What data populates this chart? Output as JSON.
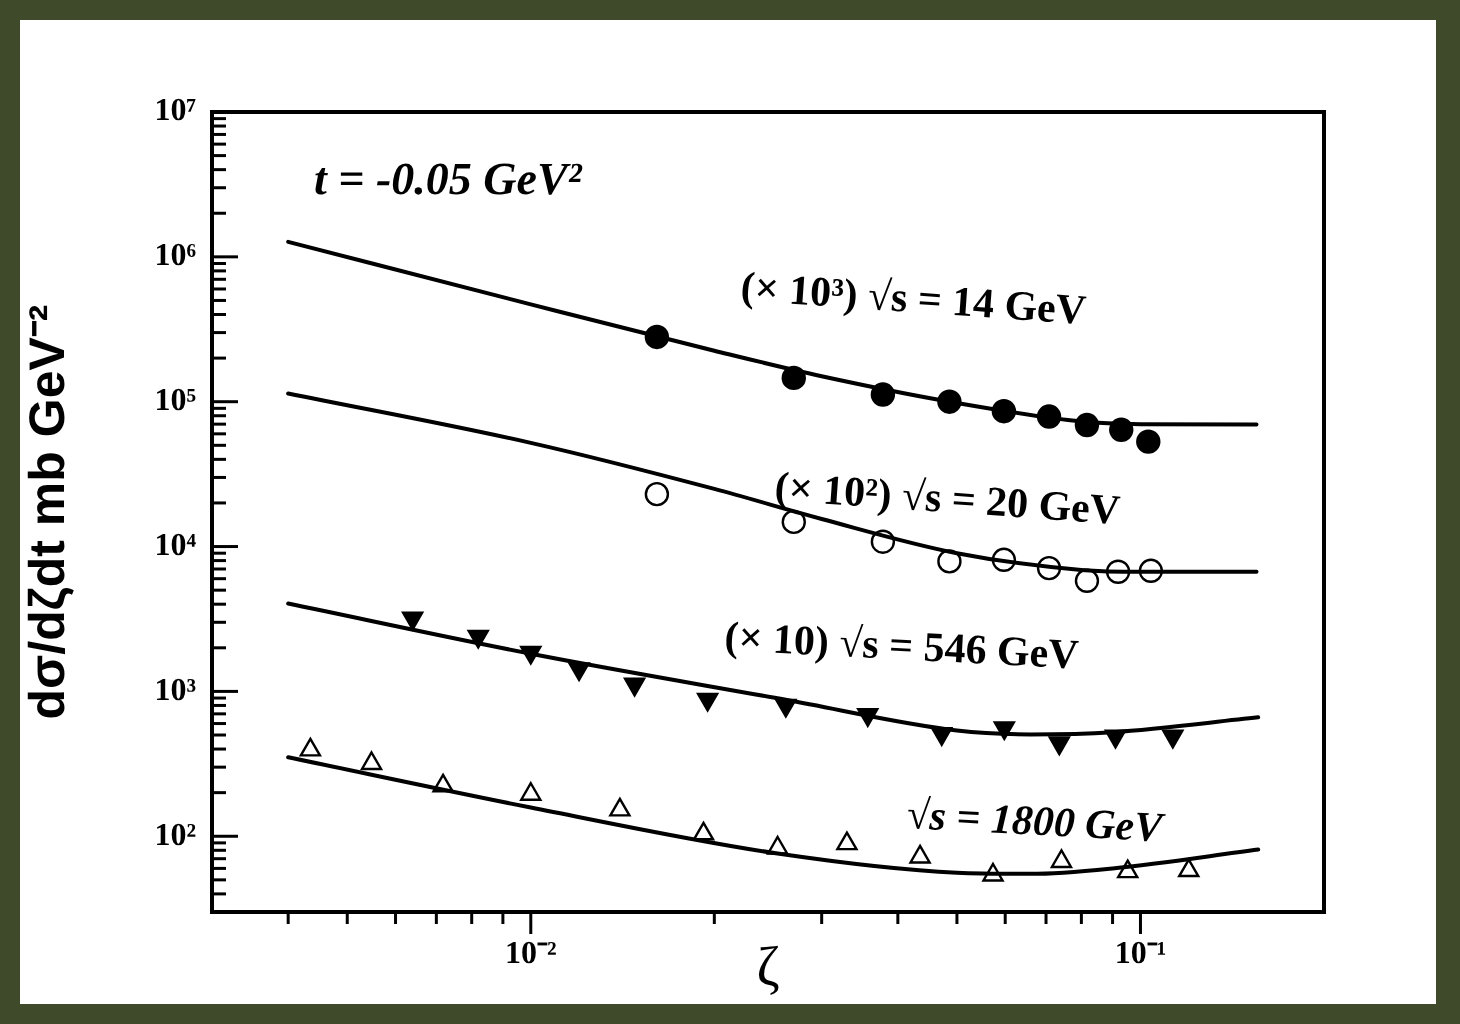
{
  "chart_data": {
    "type": "scatter",
    "xlabel": "ζ",
    "ylabel": "dσ/dζdt mb GeV⁻²",
    "log": "xy",
    "legend": false,
    "xlim": [
      0.003,
      0.2
    ],
    "ylim": [
      30,
      10000000
    ],
    "xticks": [
      {
        "value": 0.004,
        "label": null
      },
      {
        "value": 0.005,
        "label": null
      },
      {
        "value": 0.006,
        "label": null
      },
      {
        "value": 0.007,
        "label": null
      },
      {
        "value": 0.008,
        "label": null
      },
      {
        "value": 0.009,
        "label": null
      },
      {
        "value": 0.01,
        "label": "10⁻²"
      },
      {
        "value": 0.02,
        "label": null
      },
      {
        "value": 0.03,
        "label": null
      },
      {
        "value": 0.04,
        "label": null
      },
      {
        "value": 0.05,
        "label": null
      },
      {
        "value": 0.06,
        "label": null
      },
      {
        "value": 0.07,
        "label": null
      },
      {
        "value": 0.08,
        "label": null
      },
      {
        "value": 0.09,
        "label": null
      },
      {
        "value": 0.1,
        "label": "10⁻¹"
      }
    ],
    "yticks": [
      {
        "value": 30,
        "label": null
      },
      {
        "value": 40,
        "label": null
      },
      {
        "value": 50,
        "label": null
      },
      {
        "value": 60,
        "label": null
      },
      {
        "value": 70,
        "label": null
      },
      {
        "value": 80,
        "label": null
      },
      {
        "value": 90,
        "label": null
      },
      {
        "value": 100,
        "label": "10²"
      },
      {
        "value": 200,
        "label": null
      },
      {
        "value": 300,
        "label": null
      },
      {
        "value": 400,
        "label": null
      },
      {
        "value": 500,
        "label": null
      },
      {
        "value": 600,
        "label": null
      },
      {
        "value": 700,
        "label": null
      },
      {
        "value": 800,
        "label": null
      },
      {
        "value": 900,
        "label": null
      },
      {
        "value": 1000,
        "label": "10³"
      },
      {
        "value": 2000,
        "label": null
      },
      {
        "value": 3000,
        "label": null
      },
      {
        "value": 4000,
        "label": null
      },
      {
        "value": 5000,
        "label": null
      },
      {
        "value": 6000,
        "label": null
      },
      {
        "value": 7000,
        "label": null
      },
      {
        "value": 8000,
        "label": null
      },
      {
        "value": 9000,
        "label": null
      },
      {
        "value": 10000,
        "label": "10⁴"
      },
      {
        "value": 20000,
        "label": null
      },
      {
        "value": 30000,
        "label": null
      },
      {
        "value": 40000,
        "label": null
      },
      {
        "value": 50000,
        "label": null
      },
      {
        "value": 60000,
        "label": null
      },
      {
        "value": 70000,
        "label": null
      },
      {
        "value": 80000,
        "label": null
      },
      {
        "value": 90000,
        "label": null
      },
      {
        "value": 100000,
        "label": "10⁵"
      },
      {
        "value": 200000,
        "label": null
      },
      {
        "value": 300000,
        "label": null
      },
      {
        "value": 400000,
        "label": null
      },
      {
        "value": 500000,
        "label": null
      },
      {
        "value": 600000,
        "label": null
      },
      {
        "value": 700000,
        "label": null
      },
      {
        "value": 800000,
        "label": null
      },
      {
        "value": 900000,
        "label": null
      },
      {
        "value": 1000000,
        "label": "10⁶"
      },
      {
        "value": 2000000,
        "label": null
      },
      {
        "value": 3000000,
        "label": null
      },
      {
        "value": 4000000,
        "label": null
      },
      {
        "value": 5000000,
        "label": null
      },
      {
        "value": 6000000,
        "label": null
      },
      {
        "value": 7000000,
        "label": null
      },
      {
        "value": 8000000,
        "label": null
      },
      {
        "value": 9000000,
        "label": null
      },
      {
        "value": 10000000,
        "label": "10⁷"
      }
    ],
    "annotations": [
      "t = -0.05 GeV²",
      "(× 10³) √s = 14 GeV",
      "(× 10²) √s = 20 GeV",
      "(× 10) √s = 546 GeV",
      "√s = 1800 GeV"
    ],
    "series": [
      {
        "marker": "circle",
        "color": "#000000",
        "x": [
          0.0161,
          0.027,
          0.0378,
          0.0486,
          0.0597,
          0.0708,
          0.0817,
          0.093,
          0.103
        ],
        "values": [
          280000,
          146000,
          112000,
          100000,
          86000,
          79000,
          69000,
          64000,
          53000
        ]
      },
      {
        "marker": "circle-open",
        "color": "#000000",
        "x": [
          0.0161,
          0.027,
          0.0378,
          0.0486,
          0.0597,
          0.0708,
          0.0817,
          0.0919,
          0.104
        ],
        "values": [
          23000,
          14800,
          10800,
          7900,
          8100,
          7100,
          5800,
          6700,
          6800
        ]
      },
      {
        "marker": "triangle-down",
        "color": "#000000",
        "x": [
          0.0064,
          0.0082,
          0.01,
          0.012,
          0.0148,
          0.0195,
          0.0262,
          0.0357,
          0.0472,
          0.0598,
          0.0736,
          0.091,
          0.113
        ],
        "values": [
          3200,
          2400,
          1860,
          1430,
          1120,
          880,
          800,
          690,
          510,
          560,
          440,
          490,
          490
        ]
      },
      {
        "marker": "triangle-open",
        "color": "#000000",
        "x": [
          0.00435,
          0.00548,
          0.00718,
          0.01,
          0.014,
          0.0192,
          0.0254,
          0.033,
          0.0435,
          0.0573,
          0.0742,
          0.0953,
          0.12
        ],
        "values": [
          395,
          318,
          223,
          195,
          152,
          104,
          83,
          89,
          72,
          54,
          67,
          57,
          58
        ]
      },
      {
        "type": "line",
        "color": "#000000",
        "line_style": "solid",
        "x": [
          0.004,
          0.01,
          0.02,
          0.03,
          0.05,
          0.08,
          0.1,
          0.155
        ],
        "values": [
          1270000,
          470000,
          225000,
          150000,
          98000,
          73000,
          70000,
          69500
        ]
      },
      {
        "type": "line",
        "color": "#000000",
        "line_style": "solid",
        "x": [
          0.004,
          0.01,
          0.02,
          0.03,
          0.05,
          0.08,
          0.1,
          0.155
        ],
        "values": [
          114000,
          52000,
          25000,
          15500,
          9000,
          6900,
          6700,
          6700
        ]
      },
      {
        "type": "line",
        "color": "#000000",
        "line_style": "solid",
        "x": [
          0.004,
          0.01,
          0.0262,
          0.05,
          0.066,
          0.09,
          0.156
        ],
        "values": [
          4040,
          1820,
          875,
          537,
          505,
          523,
          662
        ]
      },
      {
        "type": "line",
        "color": "#000000",
        "line_style": "solid",
        "x": [
          0.004,
          0.01,
          0.0254,
          0.05,
          0.066,
          0.09,
          0.156
        ],
        "values": [
          351,
          158,
          76,
          56,
          55,
          60,
          81
        ]
      }
    ]
  }
}
